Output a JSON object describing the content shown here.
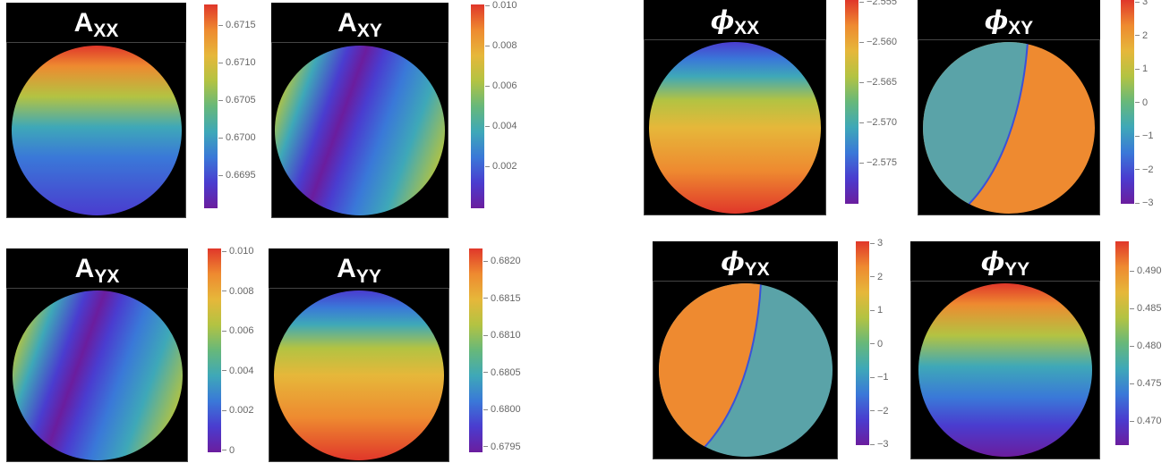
{
  "colormap": [
    "#6b1d9e",
    "#4a3ccf",
    "#3a78d8",
    "#3ea8b8",
    "#67b87a",
    "#b3c342",
    "#e6b73a",
    "#ee8a30",
    "#e0372a"
  ],
  "panels": {
    "axx": {
      "title_main": "A",
      "title_sub": "XX",
      "colorbar_ticks": [
        "0.6715",
        "0.6710",
        "0.6705",
        "0.6700",
        "0.6695"
      ]
    },
    "axy": {
      "title_main": "A",
      "title_sub": "XY",
      "colorbar_ticks": [
        "0.010",
        "0.008",
        "0.006",
        "0.004",
        "0.002"
      ]
    },
    "phixx": {
      "title_main": "ϕ",
      "title_sub": "XX",
      "colorbar_ticks": [
        "−2.555",
        "−2.560",
        "−2.565",
        "−2.570",
        "−2.575"
      ]
    },
    "phixy": {
      "title_main": "ϕ",
      "title_sub": "XY",
      "colorbar_ticks": [
        "3",
        "2",
        "1",
        "0",
        "−1",
        "−2",
        "−3"
      ]
    },
    "ayx": {
      "title_main": "A",
      "title_sub": "YX",
      "colorbar_ticks": [
        "0.010",
        "0.008",
        "0.006",
        "0.004",
        "0.002",
        "0"
      ]
    },
    "ayy": {
      "title_main": "A",
      "title_sub": "YY",
      "colorbar_ticks": [
        "0.6820",
        "0.6815",
        "0.6810",
        "0.6805",
        "0.6800",
        "0.6795"
      ]
    },
    "phiyx": {
      "title_main": "ϕ",
      "title_sub": "YX",
      "colorbar_ticks": [
        "3",
        "2",
        "1",
        "0",
        "−1",
        "−2",
        "−3"
      ]
    },
    "phiyy": {
      "title_main": "ϕ",
      "title_sub": "YY",
      "colorbar_ticks": [
        "0.490",
        "0.485",
        "0.480",
        "0.475",
        "0.470"
      ]
    }
  }
}
